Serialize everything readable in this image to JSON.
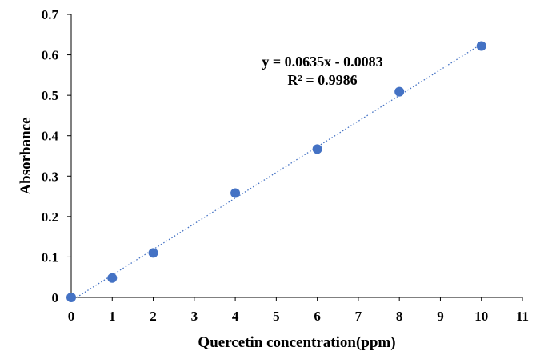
{
  "chart_data": {
    "type": "scatter",
    "xlabel": "Quercetin concentration(ppm)",
    "ylabel": "Absorbance",
    "xlim": [
      0,
      11
    ],
    "ylim": [
      0,
      0.7
    ],
    "x_ticks": [
      "0",
      "1",
      "2",
      "3",
      "4",
      "5",
      "6",
      "7",
      "8",
      "9",
      "10",
      "11"
    ],
    "y_ticks": [
      "0",
      "0.1",
      "0.2",
      "0.3",
      "0.4",
      "0.5",
      "0.6",
      "0.7"
    ],
    "series": [
      {
        "x": [
          0,
          1,
          2,
          4,
          6,
          8,
          10
        ],
        "y": [
          0.0,
          0.048,
          0.11,
          0.258,
          0.367,
          0.509,
          0.622
        ],
        "color": "#4472C4"
      }
    ],
    "trendline": {
      "type": "linear",
      "slope": 0.0635,
      "intercept": -0.0083,
      "color": "#4472C4",
      "style": "dotted",
      "equation": "y = 0.0635x - 0.0083",
      "r_squared": "R² = 0.9986"
    },
    "grid": false,
    "legend": "none"
  }
}
